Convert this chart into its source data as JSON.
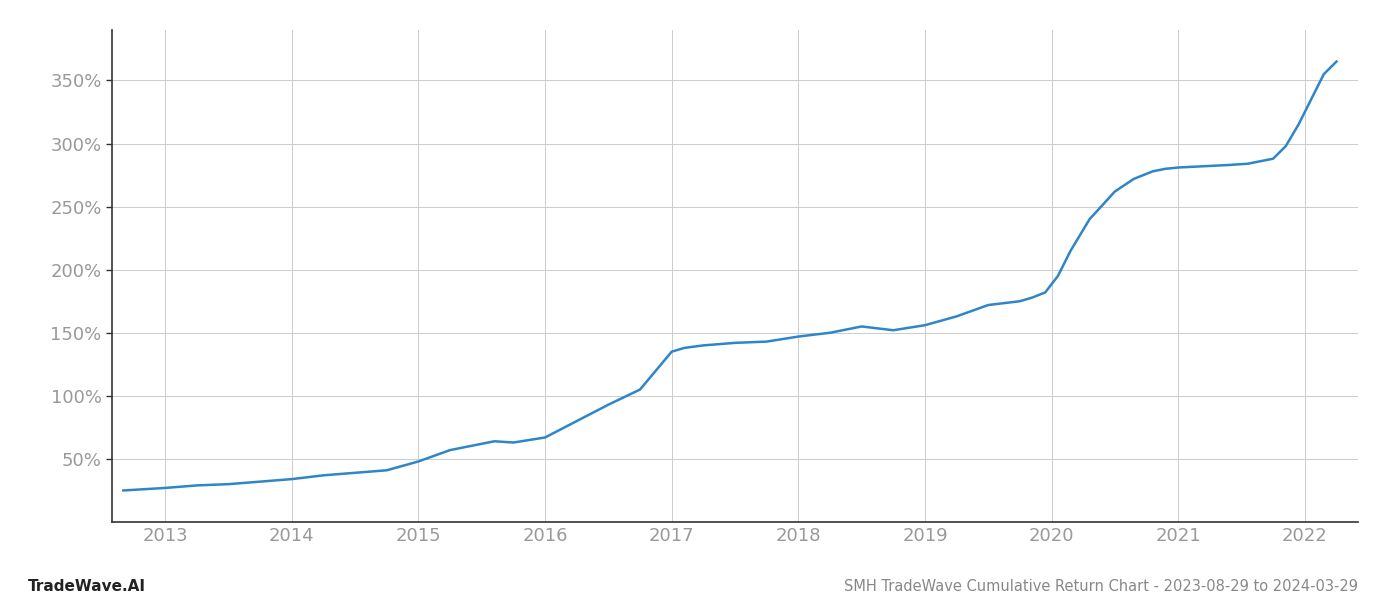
{
  "title": "SMH TradeWave Cumulative Return Chart - 2023-08-29 to 2024-03-29",
  "watermark": "TradeWave.AI",
  "line_color": "#2e86c8",
  "background_color": "#ffffff",
  "grid_color": "#cccccc",
  "x_years": [
    2013,
    2014,
    2015,
    2016,
    2017,
    2018,
    2019,
    2020,
    2021,
    2022
  ],
  "y_values_approx": [
    [
      2012.67,
      25
    ],
    [
      2013.0,
      27
    ],
    [
      2013.25,
      29
    ],
    [
      2013.5,
      30
    ],
    [
      2013.75,
      32
    ],
    [
      2014.0,
      34
    ],
    [
      2014.25,
      37
    ],
    [
      2014.5,
      39
    ],
    [
      2014.75,
      41
    ],
    [
      2015.0,
      48
    ],
    [
      2015.25,
      57
    ],
    [
      2015.5,
      62
    ],
    [
      2015.6,
      64
    ],
    [
      2015.75,
      63
    ],
    [
      2016.0,
      67
    ],
    [
      2016.25,
      80
    ],
    [
      2016.5,
      93
    ],
    [
      2016.75,
      105
    ],
    [
      2017.0,
      135
    ],
    [
      2017.1,
      138
    ],
    [
      2017.25,
      140
    ],
    [
      2017.5,
      142
    ],
    [
      2017.75,
      143
    ],
    [
      2018.0,
      147
    ],
    [
      2018.25,
      150
    ],
    [
      2018.5,
      155
    ],
    [
      2018.75,
      152
    ],
    [
      2019.0,
      156
    ],
    [
      2019.25,
      163
    ],
    [
      2019.5,
      172
    ],
    [
      2019.75,
      175
    ],
    [
      2019.85,
      178
    ],
    [
      2019.95,
      182
    ],
    [
      2020.05,
      195
    ],
    [
      2020.15,
      215
    ],
    [
      2020.3,
      240
    ],
    [
      2020.5,
      262
    ],
    [
      2020.65,
      272
    ],
    [
      2020.8,
      278
    ],
    [
      2020.9,
      280
    ],
    [
      2021.0,
      281
    ],
    [
      2021.2,
      282
    ],
    [
      2021.4,
      283
    ],
    [
      2021.55,
      284
    ],
    [
      2021.65,
      286
    ],
    [
      2021.75,
      288
    ],
    [
      2021.85,
      298
    ],
    [
      2021.95,
      315
    ],
    [
      2022.05,
      335
    ],
    [
      2022.15,
      355
    ],
    [
      2022.25,
      365
    ]
  ],
  "ytick_labels": [
    "50%",
    "100%",
    "150%",
    "200%",
    "250%",
    "300%",
    "350%"
  ],
  "ytick_values": [
    50,
    100,
    150,
    200,
    250,
    300,
    350
  ],
  "ylim": [
    0,
    390
  ],
  "xlim": [
    2012.58,
    2022.42
  ],
  "title_fontsize": 10.5,
  "watermark_fontsize": 11,
  "tick_fontsize": 13,
  "tick_color": "#999999",
  "spine_color": "#333333",
  "line_width": 1.8,
  "figsize": [
    14.0,
    6.0
  ],
  "dpi": 100
}
